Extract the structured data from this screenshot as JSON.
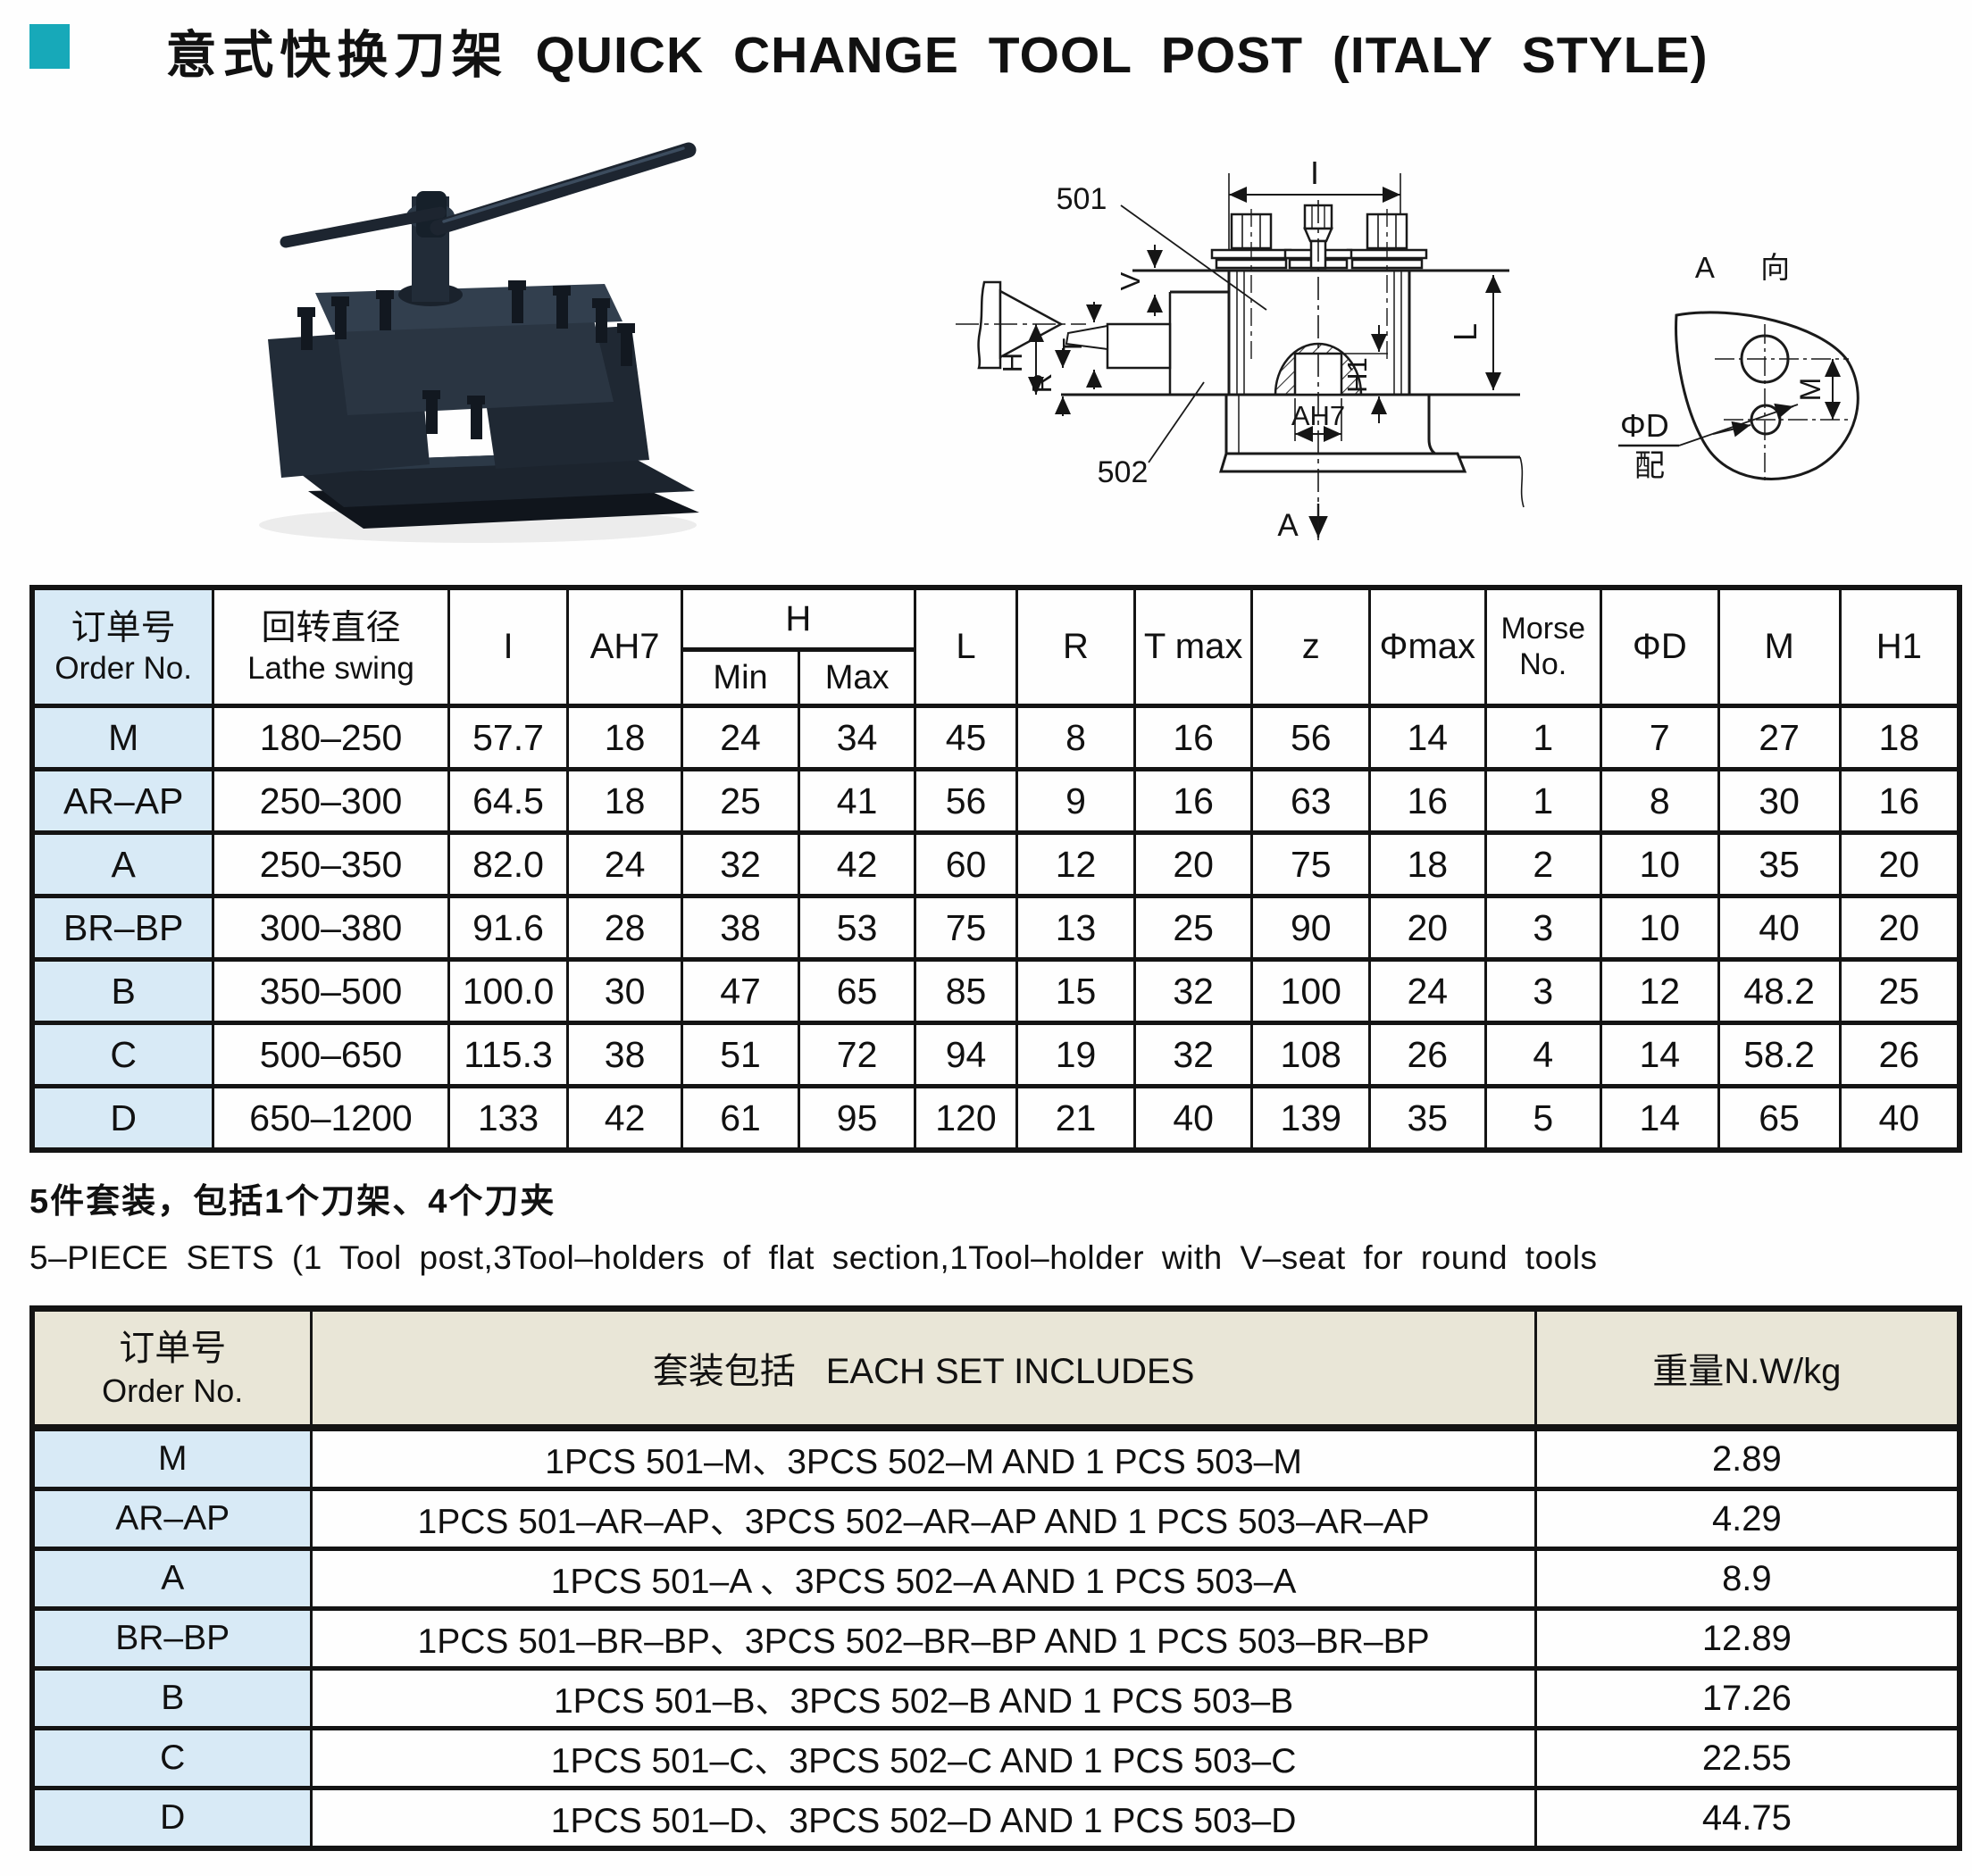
{
  "header": {
    "title_zh": "意式快换刀架",
    "title_en": "QUICK CHANGE TOOL POST (ITALY STYLE)"
  },
  "drawings": {
    "section": {
      "callout_501": "501",
      "callout_502": "502",
      "dim_i": "I",
      "dim_v": "V",
      "dim_h": "H",
      "dim_t": "T",
      "dim_r": "R",
      "dim_ah7": "AH7",
      "dim_h1": "H1",
      "dim_l": "L",
      "dim_a": "A"
    },
    "view": {
      "view_title": "A 向",
      "dim_m": "M",
      "dim_phi_d": "ΦD",
      "dim_fit": "配"
    }
  },
  "spec_table": {
    "header": {
      "order_zh": "订单号",
      "order_en": "Order No.",
      "swing_zh": "回转直径",
      "swing_en": "Lathe swing",
      "i": "I",
      "ah7": "AH7",
      "h": "H",
      "min": "Min",
      "max": "Max",
      "l": "L",
      "r": "R",
      "tmax": "T max",
      "z": "z",
      "phimax": "Φmax",
      "morse1": "Morse",
      "morse2": "No.",
      "phid": "ΦD",
      "m": "M",
      "h1": "H1"
    },
    "rows": [
      [
        "M",
        "180–250",
        "57.7",
        "18",
        "24",
        "34",
        "45",
        "8",
        "16",
        "56",
        "14",
        "1",
        "7",
        "27",
        "18"
      ],
      [
        "AR–AP",
        "250–300",
        "64.5",
        "18",
        "25",
        "41",
        "56",
        "9",
        "16",
        "63",
        "16",
        "1",
        "8",
        "30",
        "16"
      ],
      [
        "A",
        "250–350",
        "82.0",
        "24",
        "32",
        "42",
        "60",
        "12",
        "20",
        "75",
        "18",
        "2",
        "10",
        "35",
        "20"
      ],
      [
        "BR–BP",
        "300–380",
        "91.6",
        "28",
        "38",
        "53",
        "75",
        "13",
        "25",
        "90",
        "20",
        "3",
        "10",
        "40",
        "20"
      ],
      [
        "B",
        "350–500",
        "100.0",
        "30",
        "47",
        "65",
        "85",
        "15",
        "32",
        "100",
        "24",
        "3",
        "12",
        "48.2",
        "25"
      ],
      [
        "C",
        "500–650",
        "115.3",
        "38",
        "51",
        "72",
        "94",
        "19",
        "32",
        "108",
        "26",
        "4",
        "14",
        "58.2",
        "26"
      ],
      [
        "D",
        "650–1200",
        "133",
        "42",
        "61",
        "95",
        "120",
        "21",
        "40",
        "139",
        "35",
        "5",
        "14",
        "65",
        "40"
      ]
    ]
  },
  "notes": {
    "zh": "5件套装，包括1个刀架、4个刀夹",
    "en": "5–PIECE SETS  (1 Tool post,3Tool–holders of flat section,1Tool–holder with V–seat for round tools"
  },
  "sets_table": {
    "header": {
      "order_zh": "订单号",
      "order_en": "Order No.",
      "includes_zh": "套装包括",
      "includes_en": "EACH SET INCLUDES",
      "weight": "重量N.W/kg"
    },
    "rows": [
      [
        "M",
        "1PCS 501–M、3PCS 502–M AND 1 PCS 503–M",
        "2.89"
      ],
      [
        "AR–AP",
        "1PCS 501–AR–AP、3PCS 502–AR–AP AND 1 PCS 503–AR–AP",
        "4.29"
      ],
      [
        "A",
        "1PCS 501–A 、3PCS 502–A  AND 1 PCS 503–A",
        "8.9"
      ],
      [
        "BR–BP",
        "1PCS 501–BR–BP、3PCS 502–BR–BP AND 1 PCS 503–BR–BP",
        "12.89"
      ],
      [
        "B",
        "1PCS 501–B、3PCS 502–B AND 1 PCS 503–B",
        "17.26"
      ],
      [
        "C",
        "1PCS 501–C、3PCS 502–C AND 1 PCS 503–C",
        "22.55"
      ],
      [
        "D",
        "1PCS 501–D、3PCS 502–D AND 1 PCS 503–D",
        "44.75"
      ]
    ]
  },
  "colors": {
    "accent_teal": "#17a9b9",
    "table_header_beige": "#e9e6d7",
    "order_col_blue": "#d8eaf6",
    "line": "#141414"
  }
}
